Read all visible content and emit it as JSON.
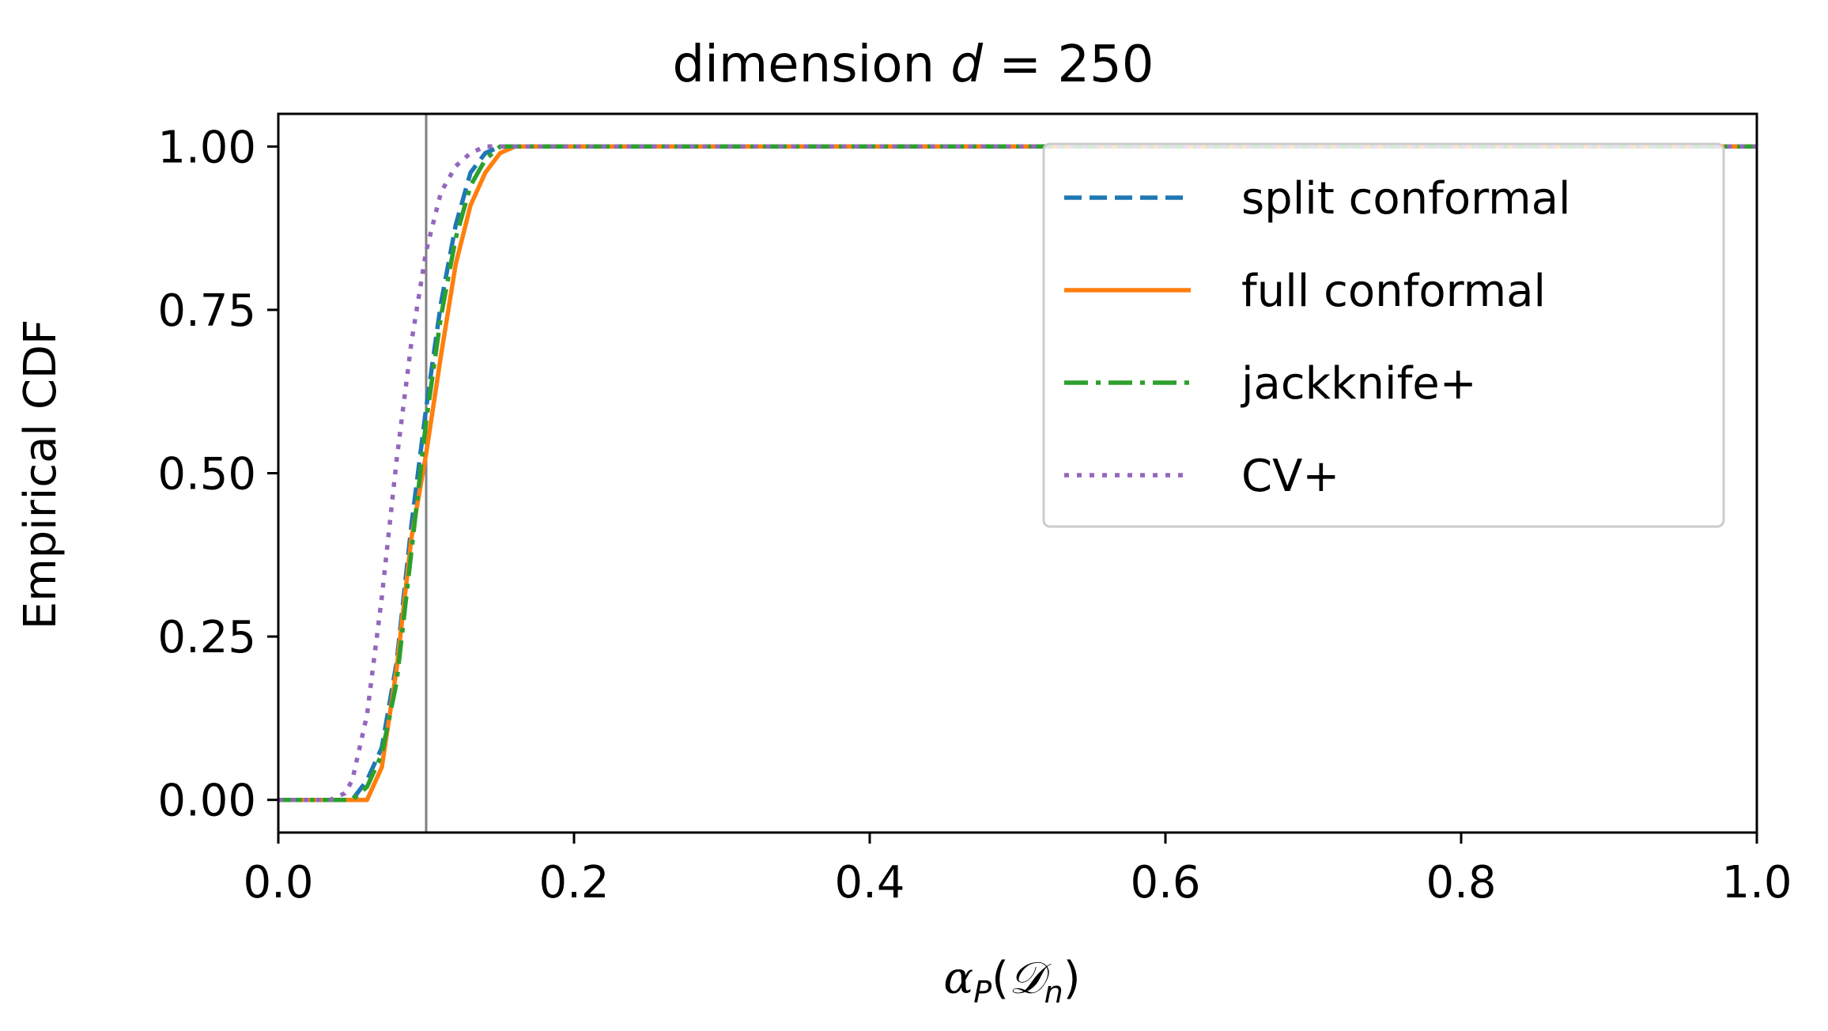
{
  "chart_data": {
    "type": "line",
    "title_prefix": "dimension ",
    "title_var": "d",
    "title_suffix": " = 250",
    "xlabel_main": "α",
    "xlabel_sub": "P",
    "xlabel_arg_open": "(",
    "xlabel_arg_main": "𝒟",
    "xlabel_arg_sub": "n",
    "xlabel_arg_close": ")",
    "ylabel": "Empirical CDF",
    "xlim": [
      0.0,
      1.0
    ],
    "ylim": [
      -0.05,
      1.05
    ],
    "xticks": [
      0.0,
      0.2,
      0.4,
      0.6,
      0.8,
      1.0
    ],
    "xtick_labels": [
      "0.0",
      "0.2",
      "0.4",
      "0.6",
      "0.8",
      "1.0"
    ],
    "yticks": [
      0.0,
      0.25,
      0.5,
      0.75,
      1.0
    ],
    "ytick_labels": [
      "0.00",
      "0.25",
      "0.50",
      "0.75",
      "1.00"
    ],
    "reference_line_x": 0.1,
    "reference_line_color": "#808080",
    "grid": false,
    "legend_position": "top-right",
    "series": [
      {
        "name": "split conformal",
        "color": "#1f77b4",
        "style": "dashed",
        "x": [
          0.0,
          0.05,
          0.06,
          0.07,
          0.08,
          0.09,
          0.1,
          0.11,
          0.12,
          0.13,
          0.14,
          0.15,
          0.16,
          0.17,
          1.0
        ],
        "y": [
          0.0,
          0.0,
          0.03,
          0.08,
          0.21,
          0.42,
          0.6,
          0.76,
          0.88,
          0.96,
          0.99,
          1.0,
          1.0,
          1.0,
          1.0
        ]
      },
      {
        "name": "full conformal",
        "color": "#ff7f0e",
        "style": "solid",
        "x": [
          0.0,
          0.06,
          0.07,
          0.08,
          0.09,
          0.1,
          0.11,
          0.12,
          0.13,
          0.14,
          0.15,
          0.16,
          0.17,
          1.0
        ],
        "y": [
          0.0,
          0.0,
          0.05,
          0.2,
          0.4,
          0.53,
          0.68,
          0.82,
          0.91,
          0.96,
          0.99,
          1.0,
          1.0,
          1.0
        ]
      },
      {
        "name": "jackknife+",
        "color": "#2ca02c",
        "style": "dashdot",
        "x": [
          0.0,
          0.05,
          0.06,
          0.07,
          0.08,
          0.09,
          0.1,
          0.11,
          0.12,
          0.13,
          0.14,
          0.15,
          0.16,
          0.17,
          1.0
        ],
        "y": [
          0.0,
          0.0,
          0.02,
          0.07,
          0.18,
          0.38,
          0.58,
          0.74,
          0.86,
          0.94,
          0.98,
          1.0,
          1.0,
          1.0,
          1.0
        ]
      },
      {
        "name": "CV+",
        "color": "#9467bd",
        "style": "dotted",
        "x": [
          0.0,
          0.035,
          0.045,
          0.05,
          0.06,
          0.07,
          0.08,
          0.09,
          0.1,
          0.11,
          0.12,
          0.13,
          0.14,
          0.15,
          1.0
        ],
        "y": [
          0.0,
          0.0,
          0.01,
          0.03,
          0.13,
          0.31,
          0.52,
          0.7,
          0.84,
          0.93,
          0.97,
          0.99,
          1.0,
          1.0,
          1.0
        ]
      }
    ]
  }
}
